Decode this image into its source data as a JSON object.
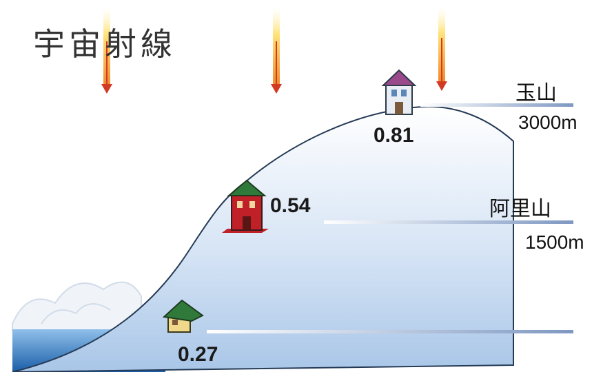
{
  "title": "宇宙射線",
  "locations": [
    {
      "name": "玉山",
      "altitude": "3000m",
      "dose": "0.81",
      "house_color": "#9a4a8a"
    },
    {
      "name": "阿里山",
      "altitude": "1500m",
      "dose": "0.54",
      "house_color": "#c02028"
    },
    {
      "name": "",
      "altitude": "",
      "dose": "0.27",
      "house_color": "#2f7a3a"
    }
  ],
  "colors": {
    "mountain_top": "#ffffff",
    "mountain_bottom": "#a9c6e8",
    "outline": "#253a55",
    "sea": "#1f6fb8",
    "ray": "#e0402a"
  },
  "icons": [
    "cosmic-ray-arrow-icon",
    "house-icon",
    "cloud-icon"
  ]
}
